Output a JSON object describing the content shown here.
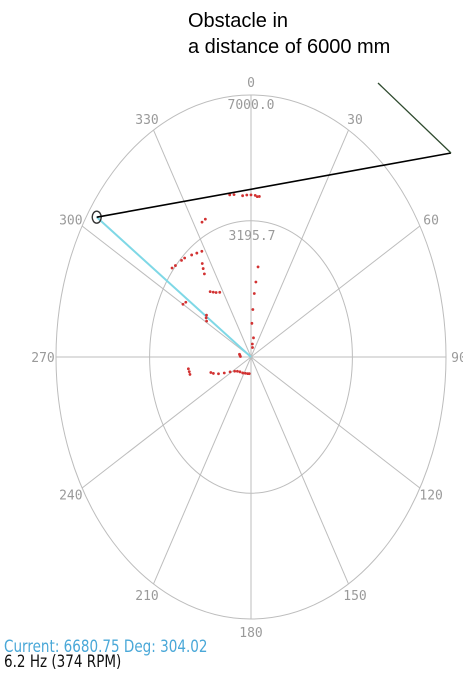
{
  "annotation": {
    "line1": "Obstacle in",
    "line2": "a distance of 6000 mm"
  },
  "status": {
    "current": "Current: 6680.75 Deg: 304.02",
    "rate": "6.2 Hz (374 RPM)"
  },
  "chart_data": {
    "type": "scatter",
    "coordinate_system": "polar",
    "angle_ticks": [
      "0",
      "30",
      "60",
      "90",
      "120",
      "150",
      "180",
      "210",
      "240",
      "270",
      "300",
      "330"
    ],
    "radius_ticks": [
      "7000.0",
      "3195.7"
    ],
    "rlim": [
      0,
      7000
    ],
    "grid": true,
    "colors": {
      "points": "#d23232",
      "grid": "#bdbdbd",
      "cursor": "#7fd8e6",
      "status_text": "#4aa8d8",
      "pointer": "#000000"
    },
    "current_reading": {
      "distance": 6680.75,
      "angle_deg": 304.02
    },
    "series": [
      {
        "points": [
          {
            "angle": 356,
            "r": 4320
          },
          {
            "angle": 358,
            "r": 4330
          },
          {
            "angle": 0,
            "r": 4330
          },
          {
            "angle": 2,
            "r": 4320
          },
          {
            "angle": 4,
            "r": 4300
          },
          {
            "angle": 352,
            "r": 4380
          },
          {
            "angle": 350,
            "r": 4400
          },
          {
            "angle": 3,
            "r": 4290
          },
          {
            "angle": 336,
            "r": 4030
          },
          {
            "angle": 334,
            "r": 4010
          },
          {
            "angle": 318,
            "r": 3560
          },
          {
            "angle": 316,
            "r": 3590
          },
          {
            "angle": 312,
            "r": 3650
          },
          {
            "angle": 310,
            "r": 3700
          },
          {
            "angle": 322,
            "r": 3460
          },
          {
            "angle": 325,
            "r": 3390
          },
          {
            "angle": 328,
            "r": 3330
          },
          {
            "angle": 325,
            "r": 3050
          },
          {
            "angle": 324,
            "r": 2920
          },
          {
            "angle": 323,
            "r": 2780
          },
          {
            "angle": 320,
            "r": 2280
          },
          {
            "angle": 322,
            "r": 2200
          },
          {
            "angle": 324,
            "r": 2130
          },
          {
            "angle": 327,
            "r": 2060
          },
          {
            "angle": 6,
            "r": 2420
          },
          {
            "angle": 5,
            "r": 2010
          },
          {
            "angle": 4,
            "r": 1700
          },
          {
            "angle": 3,
            "r": 1270
          },
          {
            "angle": 2,
            "r": 900
          },
          {
            "angle": 305,
            "r": 1950
          },
          {
            "angle": 303,
            "r": 1920
          },
          {
            "angle": 301,
            "r": 1860
          },
          {
            "angle": 300,
            "r": 2820
          },
          {
            "angle": 302,
            "r": 2760
          },
          {
            "angle": 262,
            "r": 2270
          },
          {
            "angle": 260,
            "r": 2250
          },
          {
            "angle": 258,
            "r": 2240
          },
          {
            "angle": 254,
            "r": 1500
          },
          {
            "angle": 252,
            "r": 1420
          },
          {
            "angle": 249,
            "r": 1250
          },
          {
            "angle": 246,
            "r": 1050
          },
          {
            "angle": 242,
            "r": 850
          },
          {
            "angle": 237,
            "r": 700
          },
          {
            "angle": 232,
            "r": 620
          },
          {
            "angle": 225,
            "r": 560
          },
          {
            "angle": 215,
            "r": 520
          },
          {
            "angle": 205,
            "r": 480
          },
          {
            "angle": 195,
            "r": 460
          },
          {
            "angle": 188,
            "r": 450
          },
          {
            "angle": 280,
            "r": 420
          },
          {
            "angle": 276,
            "r": 400
          },
          {
            "angle": 272,
            "r": 380
          },
          {
            "angle": 10,
            "r": 520
          },
          {
            "angle": 8,
            "r": 350
          },
          {
            "angle": 12,
            "r": 260
          }
        ]
      }
    ],
    "cursor": {
      "angle": 304,
      "r": 6680.75
    }
  }
}
